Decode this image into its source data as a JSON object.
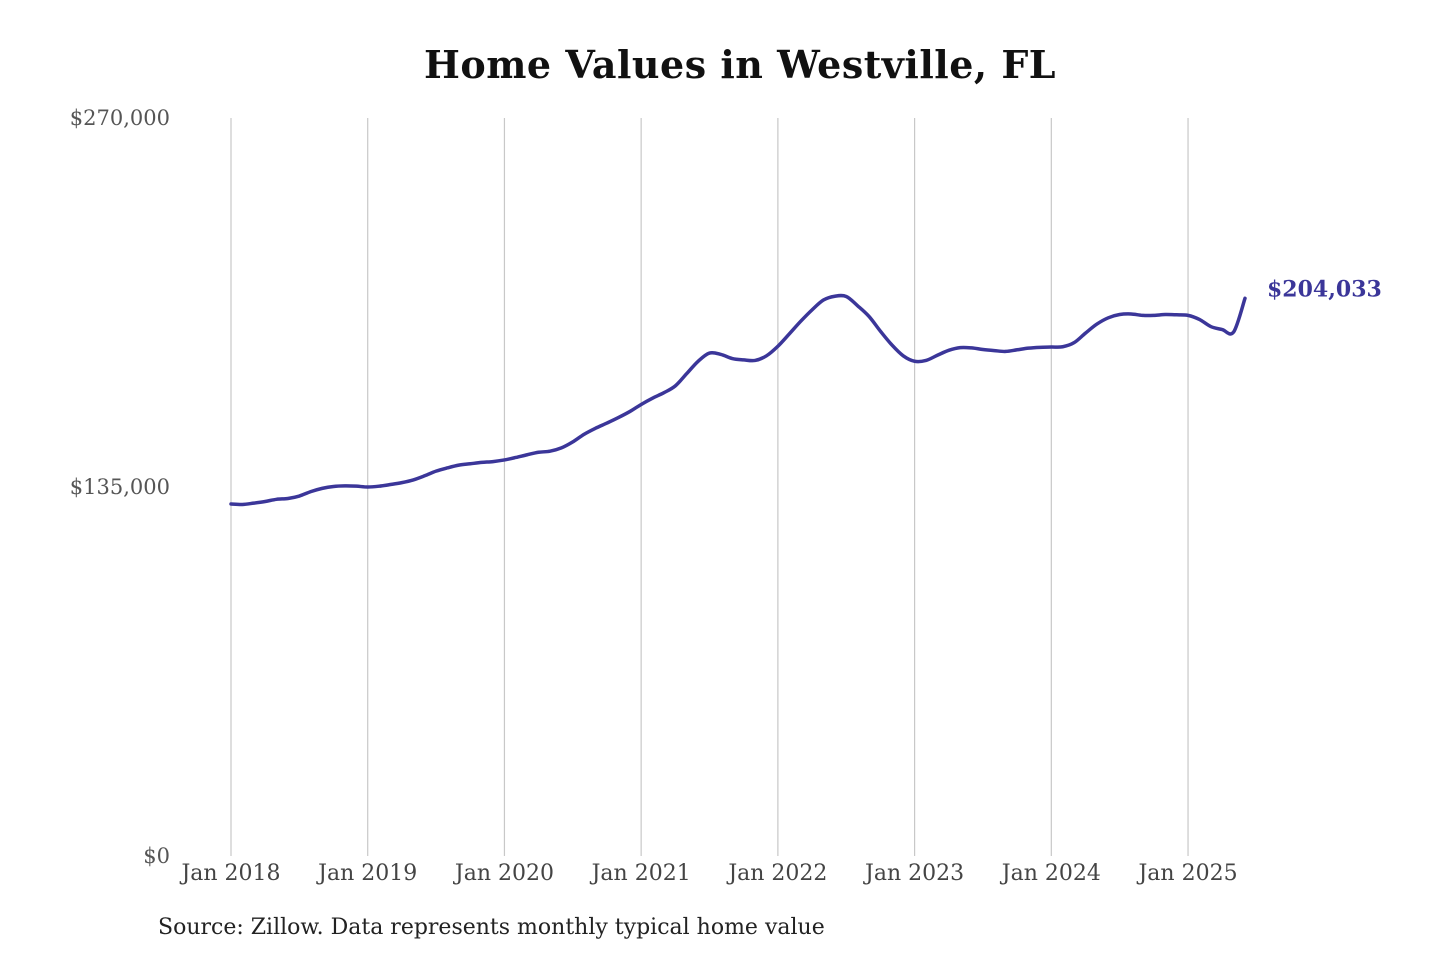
{
  "chart_data": {
    "type": "line",
    "title": "Home Values in Westville, FL",
    "source": "Source: Zillow. Data represents monthly typical home value",
    "ylim": [
      0,
      270000
    ],
    "y_ticks": [
      0,
      135000,
      270000
    ],
    "y_tick_labels": [
      "$0",
      "$135,000",
      "$270,000"
    ],
    "x_ticks": [
      "2018-01",
      "2019-01",
      "2020-01",
      "2021-01",
      "2022-01",
      "2023-01",
      "2024-01",
      "2025-01"
    ],
    "x_tick_labels": [
      "Jan 2018",
      "Jan 2019",
      "Jan 2020",
      "Jan 2021",
      "Jan 2022",
      "Jan 2023",
      "Jan 2024",
      "Jan 2025"
    ],
    "x_range": [
      "2018-01",
      "2025-06"
    ],
    "grid": "vertical",
    "line_color": "#3b3699",
    "end_label": "$204,033",
    "series": [
      {
        "x": [
          "2018-01",
          "2018-02",
          "2018-03",
          "2018-04",
          "2018-05",
          "2018-06",
          "2018-07",
          "2018-08",
          "2018-09",
          "2018-10",
          "2018-11",
          "2018-12",
          "2019-01",
          "2019-02",
          "2019-03",
          "2019-04",
          "2019-05",
          "2019-06",
          "2019-07",
          "2019-08",
          "2019-09",
          "2019-10",
          "2019-11",
          "2019-12",
          "2020-01",
          "2020-02",
          "2020-03",
          "2020-04",
          "2020-05",
          "2020-06",
          "2020-07",
          "2020-08",
          "2020-09",
          "2020-10",
          "2020-11",
          "2020-12",
          "2021-01",
          "2021-02",
          "2021-03",
          "2021-04",
          "2021-05",
          "2021-06",
          "2021-07",
          "2021-08",
          "2021-09",
          "2021-10",
          "2021-11",
          "2021-12",
          "2022-01",
          "2022-02",
          "2022-03",
          "2022-04",
          "2022-05",
          "2022-06",
          "2022-07",
          "2022-08",
          "2022-09",
          "2022-10",
          "2022-11",
          "2022-12",
          "2023-01",
          "2023-02",
          "2023-03",
          "2023-04",
          "2023-05",
          "2023-06",
          "2023-07",
          "2023-08",
          "2023-09",
          "2023-10",
          "2023-11",
          "2023-12",
          "2024-01",
          "2024-02",
          "2024-03",
          "2024-04",
          "2024-05",
          "2024-06",
          "2024-07",
          "2024-08",
          "2024-09",
          "2024-10",
          "2024-11",
          "2024-12",
          "2025-01",
          "2025-02",
          "2025-03",
          "2025-04",
          "2025-05",
          "2025-06"
        ],
        "y": [
          128800,
          128600,
          129100,
          129700,
          130500,
          130800,
          131700,
          133300,
          134500,
          135200,
          135400,
          135300,
          135000,
          135300,
          135900,
          136600,
          137600,
          139100,
          140800,
          142000,
          143000,
          143500,
          144000,
          144300,
          144900,
          145800,
          146800,
          147700,
          148100,
          149300,
          151500,
          154300,
          156500,
          158400,
          160400,
          162600,
          165200,
          167500,
          169500,
          172000,
          176500,
          181000,
          184000,
          183500,
          182000,
          181500,
          181300,
          183000,
          186500,
          191000,
          195600,
          199800,
          203400,
          204800,
          204700,
          201300,
          197400,
          192000,
          187000,
          183000,
          181000,
          181300,
          183200,
          185000,
          186000,
          185900,
          185300,
          184900,
          184600,
          185200,
          185800,
          186100,
          186200,
          186300,
          187800,
          191300,
          194600,
          196900,
          198100,
          198300,
          197800,
          197800,
          198100,
          198000,
          197800,
          196300,
          193700,
          192600,
          191700,
          204033
        ]
      }
    ]
  }
}
